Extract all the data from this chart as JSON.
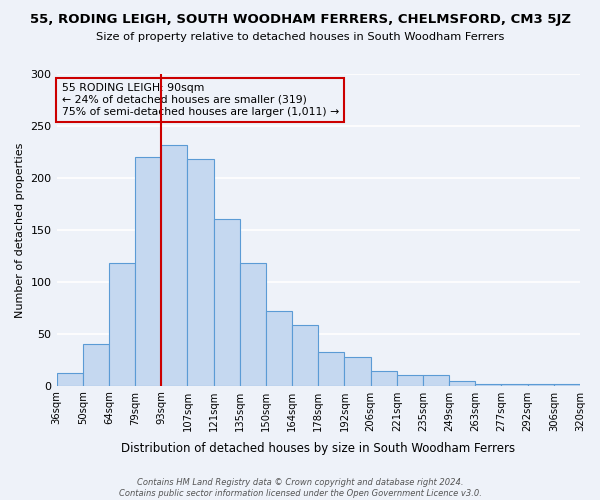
{
  "title": "55, RODING LEIGH, SOUTH WOODHAM FERRERS, CHELMSFORD, CM3 5JZ",
  "subtitle": "Size of property relative to detached houses in South Woodham Ferrers",
  "xlabel": "Distribution of detached houses by size in South Woodham Ferrers",
  "ylabel": "Number of detached properties",
  "bin_labels": [
    "36sqm",
    "50sqm",
    "64sqm",
    "79sqm",
    "93sqm",
    "107sqm",
    "121sqm",
    "135sqm",
    "150sqm",
    "164sqm",
    "178sqm",
    "192sqm",
    "206sqm",
    "221sqm",
    "235sqm",
    "249sqm",
    "263sqm",
    "277sqm",
    "292sqm",
    "306sqm",
    "320sqm"
  ],
  "bar_values": [
    12,
    40,
    118,
    220,
    232,
    218,
    160,
    118,
    72,
    58,
    32,
    28,
    14,
    10,
    10,
    4,
    2,
    2,
    2,
    2
  ],
  "bar_color": "#c5d8f0",
  "bar_edge_color": "#5b9bd5",
  "ylim": [
    0,
    300
  ],
  "yticks": [
    0,
    50,
    100,
    150,
    200,
    250,
    300
  ],
  "vline_color": "#cc0000",
  "vline_pos": 4,
  "annotation_title": "55 RODING LEIGH: 90sqm",
  "annotation_line1": "← 24% of detached houses are smaller (319)",
  "annotation_line2": "75% of semi-detached houses are larger (1,011) →",
  "annotation_box_color": "#cc0000",
  "footer1": "Contains HM Land Registry data © Crown copyright and database right 2024.",
  "footer2": "Contains public sector information licensed under the Open Government Licence v3.0.",
  "background_color": "#eef2f9"
}
